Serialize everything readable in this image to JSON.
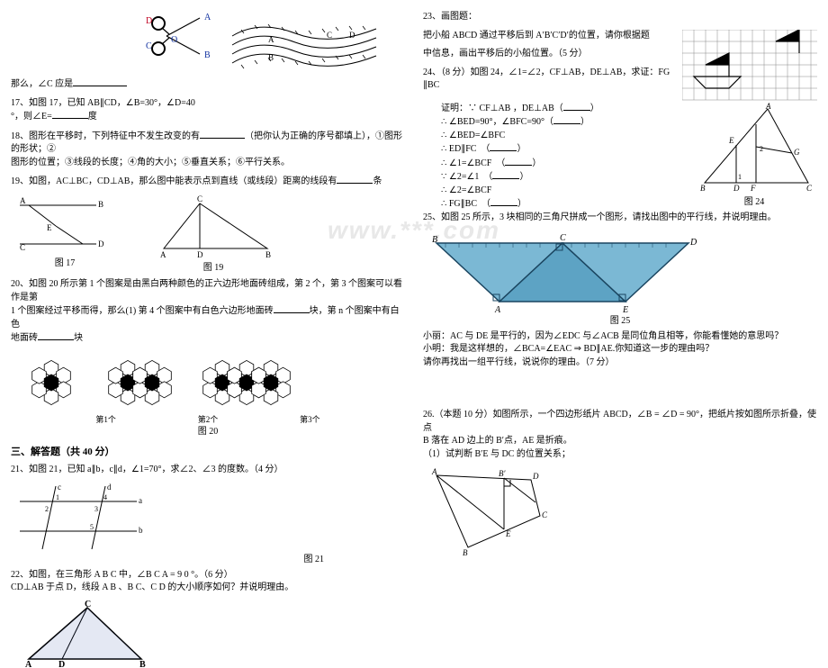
{
  "watermark": "www.***.com",
  "left": {
    "q16_line1": "那么，∠C 应是",
    "q17_l1": "17、如图 17，已知 AB∥CD，∠B=30°，∠D=40",
    "q17_l2": "°，则∠E=",
    "q17_l2b": "度",
    "q18_l1": "18、图形在平移时，下列特征中不发生改变的有",
    "q18_l1b": "（把你认为正确的序号都填上），①图形的形状；②",
    "q18_l2": "图形的位置；③线段的长度；④角的大小；⑤垂直关系；⑥平行关系。",
    "q19": "19、如图，AC⊥BC，CD⊥AB，那么图中能表示点到直线（或线段）距离的线段有",
    "q19b": "条",
    "fig17_A": "A",
    "fig17_B": "B",
    "fig17_C": "C",
    "fig17_D": "D",
    "fig17_E": "E",
    "fig17_label": "图 17",
    "fig19_A": "A",
    "fig19_B": "B",
    "fig19_C": "C",
    "fig19_D": "D",
    "fig19_label": "图 19",
    "scissors_A": "A",
    "scissors_B": "B",
    "scissors_C": "C",
    "scissors_D": "D",
    "scissors_O": "O",
    "wave_A": "A",
    "wave_B": "B",
    "wave_C": "C",
    "wave_D": "D",
    "q20_l1": "20、如图 20 所示第 1 个图案是由黑白两种颜色的正六边形地面砖组成，第 2 个，第 3 个图案可以看作是第",
    "q20_l2": "1 个图案经过平移而得，那么(1) 第 4 个图案中有白色六边形地面砖",
    "q20_l2b": "块，第 n 个图案中有白色",
    "q20_l3": "地面砖",
    "q20_l3b": "块",
    "hex_c1": "第1个",
    "hex_c2": "第2个",
    "hex_c3": "第3个",
    "fig20_label": "图 20",
    "section3": "三、解答题（共 40 分）",
    "q21_l1": "21、如图 21，已知 a∥b，c∥d，∠1=70°，求∠2、∠3 的度数。（4 分）",
    "fig21_a": "a",
    "fig21_b": "b",
    "fig21_c": "c",
    "fig21_d": "d",
    "fig21_1": "1",
    "fig21_2": "2",
    "fig21_3": "3",
    "fig21_4": "4",
    "fig21_5": "5",
    "fig21_label": "图 21",
    "q22_l1": "22、如图，在三角形 A B C 中，∠B C A = 9 0 °。（6 分）",
    "q22_l2": "CD⊥AB 于点 D，线段 A B 、B C、C D 的大小顺序如何？并说明理由。",
    "fig22_A": "A",
    "fig22_B": "B",
    "fig22_C": "C",
    "fig22_D": "D"
  },
  "right": {
    "q23_l1": "23、画图题：",
    "q23_l2": "把小船 ABCD 通过平移后到 A′B′C′D′的位置，请你根据题",
    "q23_l3": "中信息，画出平移后的小船位置。（5 分）",
    "q24_l1": "24、（8 分）如图 24，∠1=∠2，CF⊥AB，DE⊥AB，求证：FG",
    "q24_l2": "∥BC",
    "p_l1": "证明：∵ CF⊥AB ，DE⊥AB（",
    "p_l2a": "∴ ∠BED=90°，∠BFC=90°（",
    "p_l3a": "∴ ∠BED=∠BFC",
    "p_l4a": "∴ ED∥FC",
    "p_l5a": "∴ ∠1=∠BCF",
    "p_l6a": "∵ ∠2=∠1",
    "p_l7a": "∴ ∠2=∠BCF",
    "p_l8a": "∴ FG∥BC",
    "pclose": "）",
    "fig24_A": "A",
    "fig24_B": "B",
    "fig24_C": "C",
    "fig24_D": "D",
    "fig24_E": "E",
    "fig24_F": "F",
    "fig24_G": "G",
    "fig24_1": "1",
    "fig24_2": "2",
    "fig24_label": "图 24",
    "q25_l1": "25、如图 25 所示，3 块相同的三角尺拼成一个图形，请找出图中的平行线，并说明理由。",
    "fig25_A": "A",
    "fig25_B": "B",
    "fig25_C": "C",
    "fig25_D": "D",
    "fig25_E": "E",
    "fig25_label": "图 25",
    "q25_after1": "小丽：AC 与 DE 是平行的，因为∠EDC 与∠ACB 是同位角且相等，你能看懂她的意思吗？",
    "q25_after2": "小明：我是这样想的，∠BCA=∠EAC ⇒ BD∥AE.你知道这一步的理由吗？",
    "q25_after3": "请你再找出一组平行线，说说你的理由。（7 分）",
    "q26_l1": "26.（本题 10 分）如图所示，一个四边形纸片 ABCD，∠B = ∠D = 90°，把纸片按如图所示折叠，使点",
    "q26_l2": "B 落在 AD 边上的 B′点，AE 是折痕。",
    "q26_l3": "（1）试判断 B′E 与 DC 的位置关系；",
    "fig26_A": "A",
    "fig26_B": "B",
    "fig26_C": "C",
    "fig26_D": "D",
    "fig26_Bp": "B′",
    "fig26_E": "E"
  },
  "style": {
    "ruler_fill": "#7bb8d4",
    "ruler_fill_dark": "#5da3c4",
    "hex_black": "#000000",
    "hex_white": "#ffffff",
    "hex_stroke": "#000000",
    "grid_stroke": "#888888",
    "line_stroke": "#000000",
    "label_blue": "#1030a0",
    "label_red": "#c00020"
  }
}
